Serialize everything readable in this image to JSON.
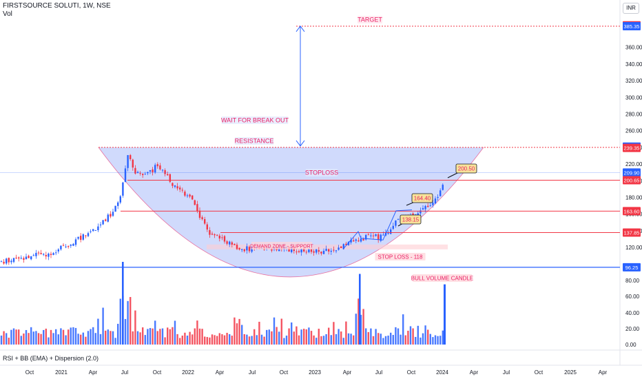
{
  "header": {
    "symbol": "FIRSTSOURCE SOLUTI, 1W, NSE",
    "volume_label": "Vol",
    "indicator_label": "RSI + BB (EMA) + Dispersion (2.0)",
    "currency": "INR"
  },
  "annotations": {
    "target": "TARGET",
    "wait": "WAIT FOR BREAK OUT",
    "resistance": "RESISTANCE",
    "stoploss": "STOPLOSS",
    "demand": "DEMAND ZONE - SUPPORT",
    "stop_loss_118": "STOP LOSS - 118",
    "bull_volume": "BULL VOLUME CANDLE",
    "callout_200": "200.50",
    "callout_164": "164.40",
    "callout_138": "138.15"
  },
  "colors": {
    "up": "#2962ff",
    "down": "#f23645",
    "cup_fill": "#c8d4fb",
    "resistance_line": "#e91e63",
    "support_line": "#2962ff",
    "axis_text": "#131722"
  },
  "chart_data": {
    "type": "candlestick",
    "timeframe": "1W",
    "exchange": "NSE",
    "x_ticks": [
      "Oct",
      "2021",
      "Apr",
      "Jul",
      "Oct",
      "2022",
      "Apr",
      "Jul",
      "Oct",
      "2023",
      "Apr",
      "Jul",
      "Oct",
      "2024",
      "Apr",
      "Jul",
      "Oct",
      "2025",
      "Apr"
    ],
    "y_ticks": [
      120,
      140,
      160,
      180,
      200,
      220,
      240,
      260,
      280,
      300,
      320,
      340,
      360
    ],
    "volume_ticks": [
      "80.00",
      "60.00",
      "40.00",
      "20.00",
      "0.00"
    ],
    "ylim": [
      90,
      390
    ],
    "price_badges": [
      {
        "label": "386.40",
        "value": 386.4,
        "color": "#f23645"
      },
      {
        "label": "385.35",
        "value": 385.35,
        "color": "#2962ff"
      },
      {
        "label": "240.95",
        "value": 240.95,
        "color": "#2962ff"
      },
      {
        "label": "239.35",
        "value": 239.35,
        "color": "#f23645"
      },
      {
        "label": "209.90",
        "value": 209.9,
        "color": "#2962ff"
      },
      {
        "label": "200.65",
        "value": 200.65,
        "color": "#f23645"
      },
      {
        "label": "163.60",
        "value": 163.6,
        "color": "#f23645"
      },
      {
        "label": "137.85",
        "value": 137.85,
        "color": "#f23645"
      },
      {
        "label": "96.25",
        "value": 96.25,
        "color": "#2962ff"
      }
    ],
    "levels": {
      "target": 385.4,
      "resistance": 240,
      "stoploss": 200.65,
      "level_163": 163.6,
      "level_138": 137.85,
      "support": 96.25
    },
    "last_close": 209.9
  }
}
